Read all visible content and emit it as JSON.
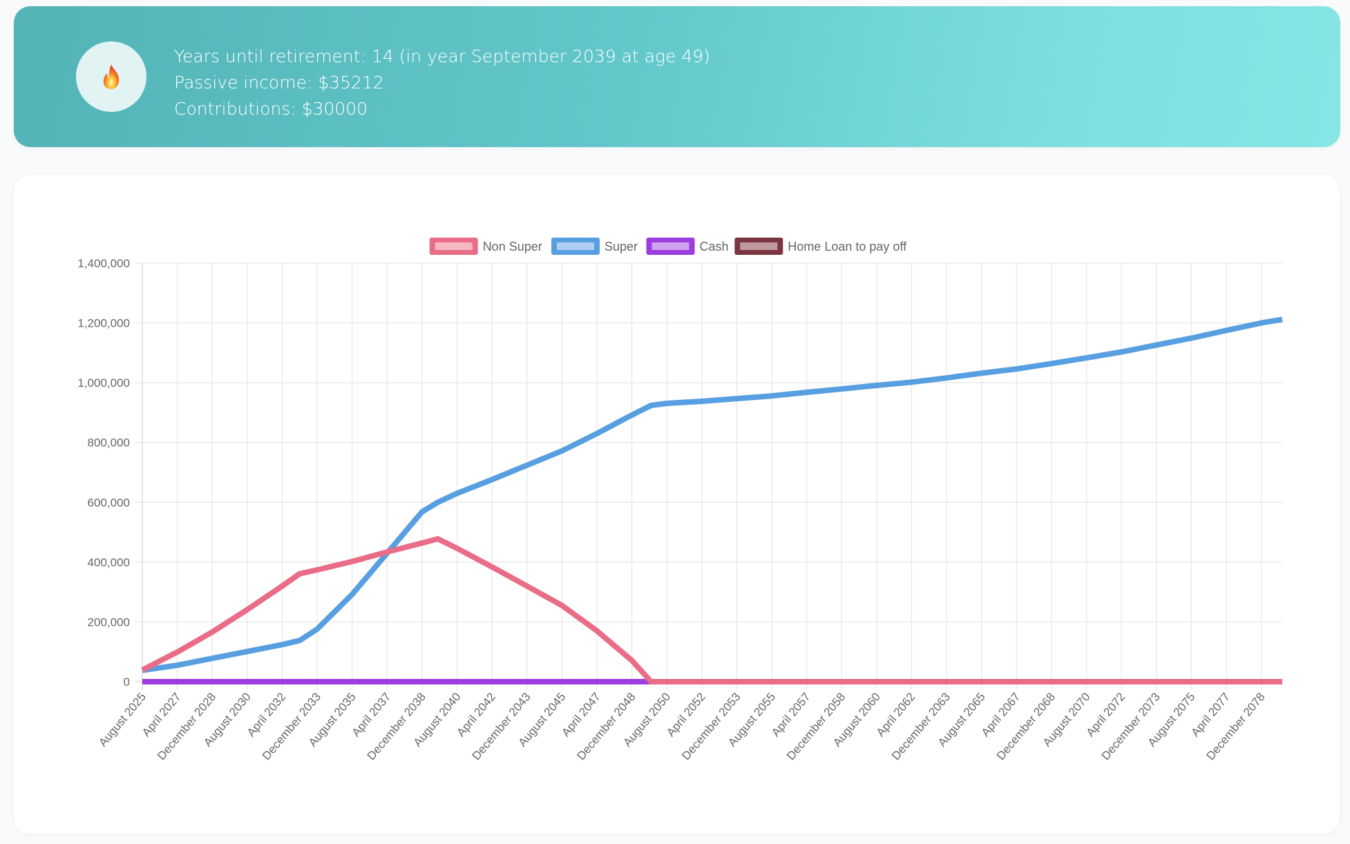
{
  "banner": {
    "icon": "fire-icon",
    "lines": [
      "Years until retirement: 14 (in year September 2039 at age 49)",
      "Passive income: $35212",
      "Contributions: $30000"
    ]
  },
  "chart_data": {
    "type": "line",
    "title": "",
    "xlabel": "",
    "ylabel": "",
    "x_start": "August 2025",
    "x_unit": "months since August 2025",
    "x_tick_labels": [
      "August 2025",
      "April 2027",
      "December 2028",
      "August 2030",
      "April 2032",
      "December 2033",
      "August 2035",
      "April 2037",
      "December 2038",
      "August 2040",
      "April 2042",
      "December 2043",
      "August 2045",
      "April 2047",
      "December 2048",
      "August 2050",
      "April 2052",
      "December 2053",
      "August 2055",
      "April 2057",
      "December 2058",
      "August 2060",
      "April 2062",
      "December 2063",
      "August 2065",
      "April 2067",
      "December 2068",
      "August 2070",
      "April 2072",
      "December 2073",
      "August 2075",
      "April 2077",
      "December 2078"
    ],
    "x_tick_step_months": 20,
    "x_range_months": [
      0,
      652
    ],
    "ylim": [
      0,
      1400000
    ],
    "y_ticks": [
      0,
      200000,
      400000,
      600000,
      800000,
      1000000,
      1200000,
      1400000
    ],
    "y_tick_labels": [
      "0",
      "200,000",
      "400,000",
      "600,000",
      "800,000",
      "1,000,000",
      "1,200,000",
      "1,400,000"
    ],
    "grid": true,
    "legend_position": "top-center",
    "x_months": [
      0,
      20,
      40,
      60,
      80,
      90,
      100,
      120,
      140,
      160,
      169,
      180,
      200,
      220,
      240,
      260,
      280,
      291,
      300,
      320,
      340,
      360,
      380,
      400,
      420,
      440,
      460,
      480,
      500,
      520,
      540,
      560,
      580,
      600,
      620,
      640,
      652
    ],
    "series": [
      {
        "name": "Non Super",
        "color": "#e96d87",
        "fill": "#f7b8c4",
        "values": [
          39000,
          99000,
          166000,
          241000,
          320000,
          361000,
          374000,
          402000,
          434000,
          464000,
          478000,
          446000,
          384000,
          320000,
          255000,
          170000,
          71000,
          0,
          0,
          0,
          0,
          0,
          0,
          0,
          0,
          0,
          0,
          0,
          0,
          0,
          0,
          0,
          0,
          0,
          0,
          0,
          0
        ]
      },
      {
        "name": "Super",
        "color": "#579fe0",
        "fill": "#aecff3",
        "values": [
          38000,
          55000,
          78000,
          101000,
          124000,
          138000,
          176000,
          292000,
          430000,
          568000,
          600000,
          630000,
          676000,
          724000,
          772000,
          830000,
          892000,
          924000,
          931000,
          938000,
          947000,
          956000,
          968000,
          979000,
          991000,
          1002000,
          1016000,
          1032000,
          1046000,
          1064000,
          1083000,
          1103000,
          1126000,
          1149000,
          1175000,
          1200000,
          1212000
        ]
      },
      {
        "name": "Cash",
        "color": "#9b3ddf",
        "fill": "#cfa1ef",
        "values": [
          0,
          0,
          0,
          0,
          0,
          0,
          0,
          0,
          0,
          0,
          0,
          0,
          0,
          0,
          0,
          0,
          0,
          0,
          0,
          0,
          0,
          0,
          0,
          0,
          0,
          0,
          0,
          0,
          0,
          0,
          0,
          0,
          0,
          0,
          0,
          0,
          0
        ]
      },
      {
        "name": "Home Loan to pay off",
        "color": "#7b3540",
        "fill": "#bf999c",
        "values": [
          0,
          0,
          0,
          0,
          0,
          0,
          0,
          0,
          0,
          0,
          0,
          0,
          0,
          0,
          0,
          0,
          0,
          0,
          0,
          0,
          0,
          0,
          0,
          0,
          0,
          0,
          0,
          0,
          0,
          0,
          0,
          0,
          0,
          0,
          0,
          0,
          0
        ]
      }
    ]
  }
}
